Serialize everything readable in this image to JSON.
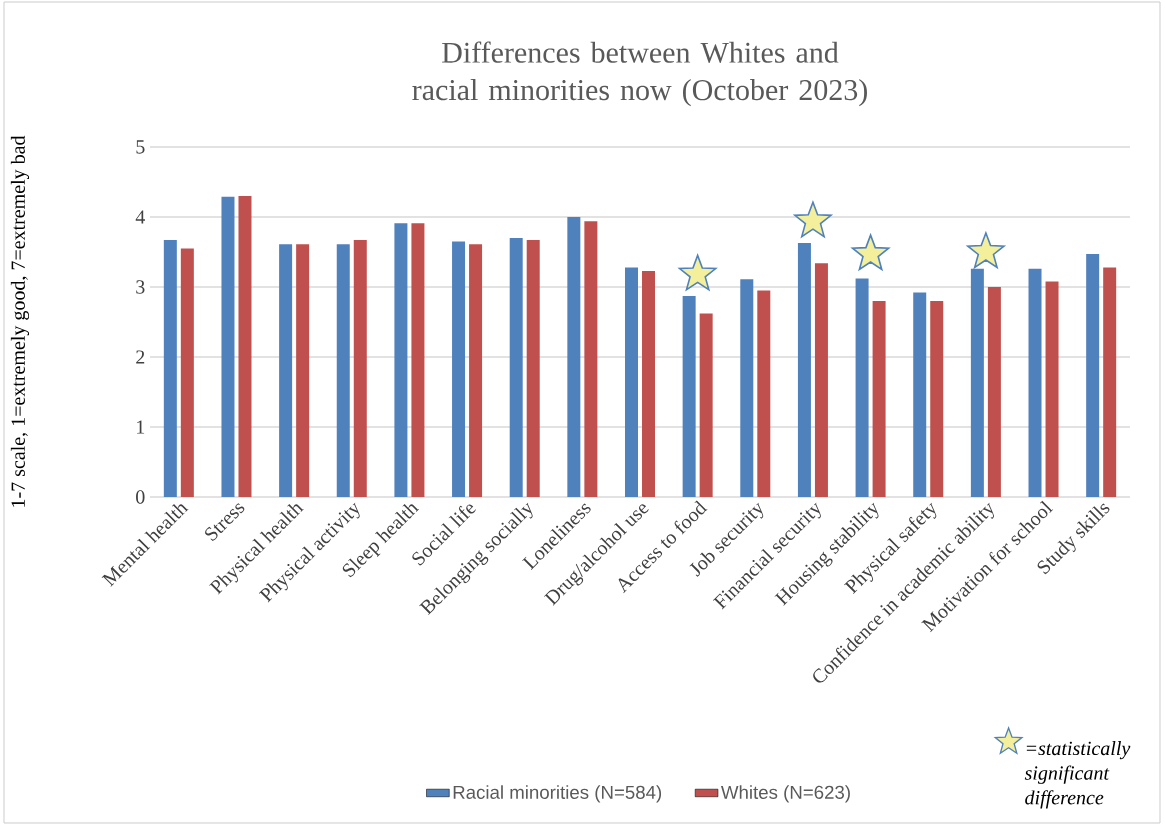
{
  "chart_data": {
    "type": "bar",
    "title": "Differences between Whites and racial minorities now (October 2023)",
    "ylabel": "1-7 scale, 1=extremely good, 7=extremely bad",
    "categories": [
      "Mental health",
      "Stress",
      "Physical health",
      "Physical activity",
      "Sleep health",
      "Social life",
      "Belonging socially",
      "Loneliness",
      "Drug/alcohol use",
      "Access to food",
      "Job security",
      "Financial security",
      "Housing stability",
      "Physical safety",
      "Confidence in academic ability",
      "Motivation for school",
      "Study skills"
    ],
    "series": [
      {
        "name": "Racial minorities (N=584)",
        "color": "#4f81bd",
        "values": [
          3.67,
          4.29,
          3.61,
          3.61,
          3.91,
          3.65,
          3.7,
          4.0,
          3.28,
          2.87,
          3.11,
          3.63,
          3.12,
          2.92,
          3.26,
          3.26,
          3.47
        ]
      },
      {
        "name": "Whites (N=623)",
        "color": "#c0504d",
        "values": [
          3.55,
          4.3,
          3.61,
          3.67,
          3.91,
          3.61,
          3.67,
          3.94,
          3.23,
          2.62,
          2.95,
          3.34,
          2.8,
          2.8,
          3.0,
          3.08,
          3.28
        ]
      },
      {
        "type": "scatter",
        "name": "=statistically significant difference",
        "color": "#f3ef9a",
        "marker": "star",
        "x": [
          "Access to food",
          "Financial security",
          "Housing stability",
          "Confidence in academic ability"
        ],
        "values": [
          3.18,
          3.94,
          3.47,
          3.5
        ]
      }
    ],
    "ylim": [
      0,
      5
    ],
    "yticks": [
      0,
      1,
      2,
      3,
      4,
      5
    ],
    "grid": "y",
    "legend": "bottom"
  }
}
